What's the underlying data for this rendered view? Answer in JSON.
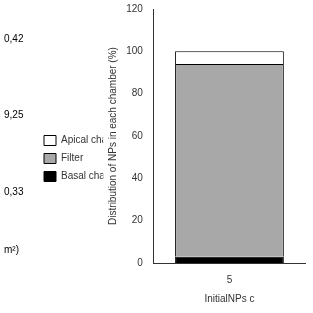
{
  "chart_data": {
    "type": "bar",
    "stacked": true,
    "categories": [
      "5"
    ],
    "series": [
      {
        "name": "Basal chamber",
        "color": "#000000",
        "values": [
          3.0
        ]
      },
      {
        "name": "Filter",
        "color": "#a8a8a8",
        "values": [
          91.0
        ]
      },
      {
        "name": "Apical chamber",
        "color": "#ffffff",
        "values": [
          6.0
        ]
      }
    ],
    "ylabel": "Distribution of NPs in each chamber (%)",
    "xlabel": "InitialNPs c",
    "ylim": [
      0,
      120
    ],
    "yticks": [
      0,
      20,
      40,
      60,
      80,
      100,
      120
    ],
    "annotations": [
      "0,42",
      "9,25",
      "0,33",
      "m²)"
    ],
    "legend": "left",
    "grid": false
  }
}
